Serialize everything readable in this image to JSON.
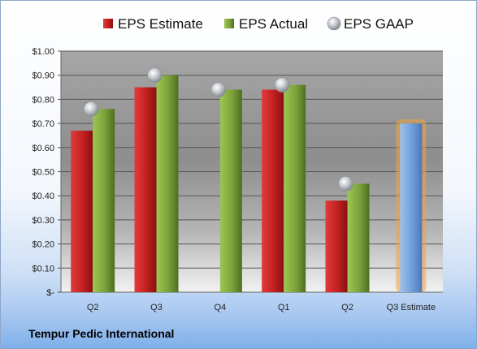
{
  "company": "Tempur Pedic International",
  "chart_data": {
    "type": "bar",
    "categories": [
      "Q2",
      "Q3",
      "Q4",
      "Q1",
      "Q2",
      "Q3 Estimate"
    ],
    "series": [
      {
        "name": "EPS Estimate",
        "kind": "bar",
        "color": "#cc2a2a",
        "values": [
          0.67,
          0.85,
          null,
          0.84,
          0.38,
          null
        ]
      },
      {
        "name": "EPS Actual",
        "kind": "bar",
        "color": "#7fa63a",
        "values": [
          0.76,
          0.9,
          0.84,
          0.86,
          0.45,
          null
        ]
      },
      {
        "name": "EPS GAAP",
        "kind": "marker",
        "color": "#b8bcc4",
        "values": [
          0.76,
          0.9,
          0.84,
          0.86,
          0.45,
          null
        ]
      },
      {
        "name": "Q3 Estimate",
        "kind": "highlight-bar",
        "color": "#7aa7dc",
        "values": [
          null,
          null,
          null,
          null,
          null,
          0.7
        ]
      }
    ],
    "yticks": [
      "$-",
      "$0.10",
      "$0.20",
      "$0.30",
      "$0.40",
      "$0.50",
      "$0.60",
      "$0.70",
      "$0.80",
      "$0.90",
      "$1.00"
    ],
    "ylim": [
      0,
      1.0
    ],
    "grid": true,
    "legend": "top"
  }
}
